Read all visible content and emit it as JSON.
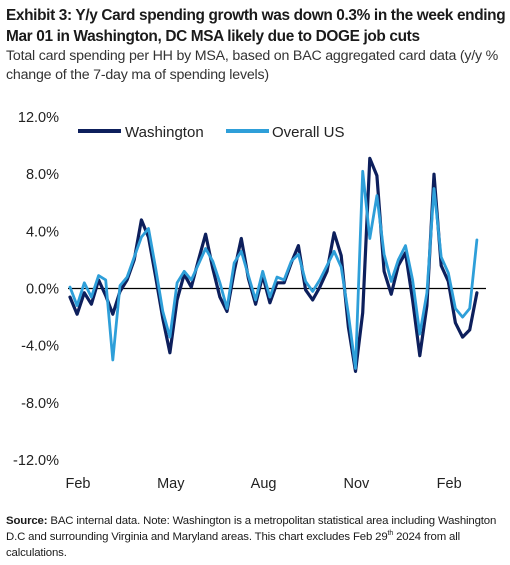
{
  "title": "Exhibit 3: Y/y Card spending growth was down 0.3% in the week ending Mar 01 in Washington, DC MSA likely due to DOGE job cuts",
  "subtitle": "Total card spending per HH by MSA, based on BAC aggregated card data (y/y % change of the 7-day ma of spending levels)",
  "footer": {
    "label": "Source:",
    "text_before_sup": " BAC internal data. Note: Washington is a metropolitan statistical area including Washington D.C and surrounding Virginia and Maryland areas. This chart excludes Feb 29",
    "sup": "th",
    "text_after_sup": " 2024 from all calculations."
  },
  "chart_data": {
    "type": "line",
    "ylabel": "",
    "xlabel": "",
    "ylim": [
      -12,
      12
    ],
    "y_ticks": [
      "12.0%",
      "8.0%",
      "4.0%",
      "0.0%",
      "-4.0%",
      "-8.0%",
      "-12.0%"
    ],
    "y_tick_values": [
      12,
      8,
      4,
      0,
      -4,
      -8,
      -12
    ],
    "x_tick_labels": [
      "Feb",
      "May",
      "Aug",
      "Nov",
      "Feb"
    ],
    "x_tick_positions": [
      0,
      13,
      26,
      39,
      52
    ],
    "x_range": [
      0,
      58
    ],
    "legend_position": "top",
    "series": [
      {
        "name": "Washington",
        "color": "#0d1f5c",
        "x": [
          0,
          1,
          2,
          3,
          4,
          5,
          6,
          7,
          8,
          9,
          10,
          11,
          12,
          13,
          14,
          15,
          16,
          17,
          18,
          19,
          20,
          21,
          22,
          23,
          24,
          25,
          26,
          27,
          28,
          29,
          30,
          31,
          32,
          33,
          34,
          35,
          36,
          37,
          38,
          39,
          40,
          41,
          42,
          43,
          44,
          45,
          46,
          47,
          48,
          49,
          50,
          51,
          52,
          53,
          54,
          55,
          56,
          57
        ],
        "values": [
          -0.6,
          -1.8,
          -0.3,
          -1.1,
          0.6,
          -0.5,
          -1.8,
          -0.2,
          0.6,
          2.0,
          4.8,
          3.6,
          0.8,
          -2.1,
          -4.5,
          -0.8,
          1.0,
          0.1,
          2.0,
          3.8,
          1.4,
          -0.6,
          -1.6,
          1.2,
          3.5,
          0.7,
          -1.1,
          0.9,
          -1.0,
          0.4,
          0.4,
          1.8,
          3.0,
          -0.1,
          -0.8,
          0.1,
          1.2,
          3.9,
          2.3,
          -2.7,
          -5.8,
          -1.7,
          9.1,
          7.9,
          1.2,
          -0.4,
          1.6,
          2.5,
          -0.8,
          -4.7,
          -1.2,
          8.0,
          1.6,
          0.5,
          -2.4,
          -3.4,
          -2.9,
          -0.3
        ]
      },
      {
        "name": "Overall US",
        "color": "#2e9fd9",
        "x": [
          0,
          1,
          2,
          3,
          4,
          5,
          6,
          7,
          8,
          9,
          10,
          11,
          12,
          13,
          14,
          15,
          16,
          17,
          18,
          19,
          20,
          21,
          22,
          23,
          24,
          25,
          26,
          27,
          28,
          29,
          30,
          31,
          32,
          33,
          34,
          35,
          36,
          37,
          38,
          39,
          40,
          41,
          42,
          43,
          44,
          45,
          46,
          47,
          48,
          49,
          50,
          51,
          52,
          53,
          54,
          55,
          56,
          57
        ],
        "values": [
          0.1,
          -1.2,
          0.4,
          -0.6,
          0.9,
          0.6,
          -5.0,
          0.2,
          0.8,
          2.2,
          3.6,
          4.2,
          1.4,
          -1.6,
          -3.4,
          0.4,
          1.2,
          0.6,
          1.7,
          2.8,
          1.9,
          0.4,
          -1.4,
          1.8,
          2.6,
          0.9,
          -0.8,
          1.2,
          -0.6,
          0.8,
          0.6,
          1.9,
          2.4,
          0.5,
          -0.2,
          0.6,
          1.6,
          2.6,
          1.5,
          -1.8,
          -5.6,
          8.2,
          3.5,
          6.5,
          2.4,
          0.5,
          2.0,
          3.0,
          0.6,
          -3.2,
          -0.3,
          7.0,
          2.2,
          1.1,
          -1.4,
          -2.0,
          -1.4,
          3.4
        ]
      }
    ]
  }
}
